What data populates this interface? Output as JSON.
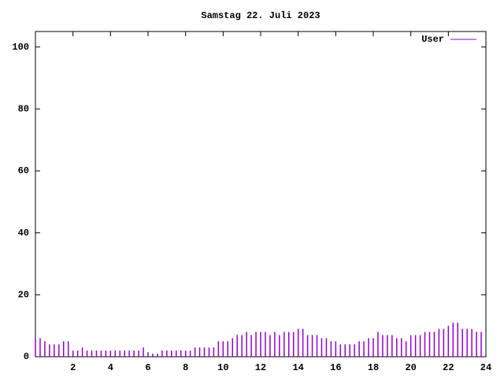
{
  "chart_data": {
    "type": "impulses",
    "title": "Samstag 22. Juli 2023",
    "series": [
      {
        "name": "User",
        "color": "#9400d3",
        "x": [
          0,
          0.25,
          0.5,
          0.75,
          1,
          1.25,
          1.5,
          1.75,
          2,
          2.25,
          2.5,
          2.75,
          3,
          3.25,
          3.5,
          3.75,
          4,
          4.25,
          4.5,
          4.75,
          5,
          5.25,
          5.5,
          5.75,
          6,
          6.25,
          6.5,
          6.75,
          7,
          7.25,
          7.5,
          7.75,
          8,
          8.25,
          8.5,
          8.75,
          9,
          9.25,
          9.5,
          9.75,
          10,
          10.25,
          10.5,
          10.75,
          11,
          11.25,
          11.5,
          11.75,
          12,
          12.25,
          12.5,
          12.75,
          13,
          13.25,
          13.5,
          13.75,
          14,
          14.25,
          14.5,
          14.75,
          15,
          15.25,
          15.5,
          15.75,
          16,
          16.25,
          16.5,
          16.75,
          17,
          17.25,
          17.5,
          17.75,
          18,
          18.25,
          18.5,
          18.75,
          19,
          19.25,
          19.5,
          19.75,
          20,
          20.25,
          20.5,
          20.75,
          21,
          21.25,
          21.5,
          21.75,
          22,
          22.25,
          22.5,
          22.75,
          23,
          23.25,
          23.5,
          23.75
        ],
        "values": [
          6,
          6,
          5,
          4,
          4,
          4,
          5,
          5,
          2,
          2,
          3,
          2,
          2,
          2,
          2,
          2,
          2,
          2,
          2,
          2,
          2,
          2,
          2,
          3,
          1,
          1,
          1,
          2,
          2,
          2,
          2,
          2,
          2,
          2,
          3,
          3,
          3,
          3,
          3,
          5,
          5,
          5,
          6,
          7,
          7,
          8,
          7,
          8,
          8,
          8,
          7,
          8,
          7,
          8,
          8,
          8,
          9,
          9,
          7,
          7,
          7,
          6,
          6,
          5,
          5,
          4,
          4,
          4,
          4,
          5,
          5,
          6,
          6,
          8,
          7,
          7,
          7,
          6,
          6,
          5,
          7,
          7,
          7,
          8,
          8,
          8,
          9,
          9,
          10,
          11,
          11,
          9,
          9,
          9,
          8,
          8
        ]
      }
    ],
    "xlim": [
      0,
      24
    ],
    "xticks": [
      2,
      4,
      6,
      8,
      10,
      12,
      14,
      16,
      18,
      20,
      22,
      24
    ],
    "ylim": [
      0,
      105
    ],
    "yticks": [
      0,
      20,
      40,
      60,
      80,
      100
    ]
  }
}
